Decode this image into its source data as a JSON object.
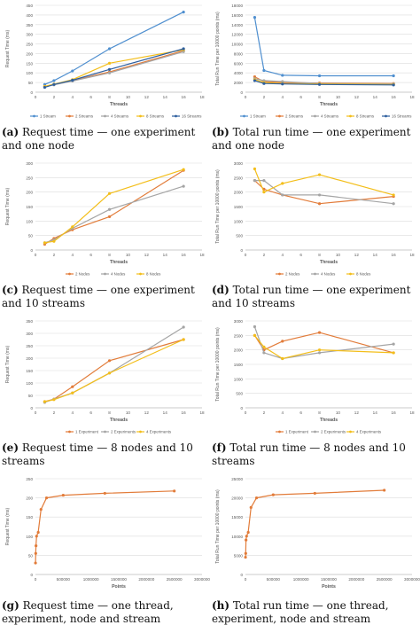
{
  "colors": {
    "blue": "#4f8fcf",
    "orange": "#e27c3a",
    "gray": "#a5a5a5",
    "yellow": "#f3be1a",
    "navy": "#2e5f9e",
    "grid": "#dcdcdc",
    "axis": "#bfbfbf",
    "text": "#595959"
  },
  "captions": [
    {
      "label": "(a)",
      "text": "Request time — one experiment and one node"
    },
    {
      "label": "(b)",
      "text": "Total run time — one experiment and one node"
    },
    {
      "label": "(c)",
      "text": "Request time — one experiment and 10 streams"
    },
    {
      "label": "(d)",
      "text": "Total run time — one experiment and 10 streams"
    },
    {
      "label": "(e)",
      "text": "Request time — 8 nodes and 10 streams"
    },
    {
      "label": "(f)",
      "text": "Total run time — 8 nodes and 10 streams"
    },
    {
      "label": "(g)",
      "text": "Request time — one thread, experiment, node and stream"
    },
    {
      "label": "(h)",
      "text": "Total run time — one thread, experiment, node and stream"
    }
  ],
  "chart_data": [
    {
      "id": "a",
      "type": "line",
      "xlabel": "Threads",
      "ylabel": "Request Time (ms)",
      "xlim": [
        0,
        18
      ],
      "xticks": [
        0,
        2,
        4,
        6,
        8,
        10,
        12,
        14,
        16,
        18
      ],
      "ylim": [
        0,
        450
      ],
      "yticks": [
        0,
        50,
        100,
        150,
        200,
        250,
        300,
        350,
        400,
        450
      ],
      "legend": "bottom",
      "grid": true,
      "series": [
        {
          "name": "1 Stream",
          "color": "blue",
          "x": [
            1,
            2,
            4,
            8,
            16
          ],
          "y": [
            40,
            60,
            110,
            225,
            415
          ]
        },
        {
          "name": "2 Streams",
          "color": "orange",
          "x": [
            1,
            2,
            4,
            8,
            16
          ],
          "y": [
            30,
            40,
            60,
            105,
            215
          ]
        },
        {
          "name": "4 Streams",
          "color": "gray",
          "x": [
            1,
            2,
            4,
            8,
            16
          ],
          "y": [
            28,
            38,
            58,
            100,
            210
          ]
        },
        {
          "name": "8 Streams",
          "color": "yellow",
          "x": [
            1,
            2,
            4,
            8,
            16
          ],
          "y": [
            30,
            42,
            65,
            150,
            220
          ]
        },
        {
          "name": "16 Streams",
          "color": "navy",
          "x": [
            1,
            2,
            4,
            8,
            16
          ],
          "y": [
            25,
            40,
            62,
            118,
            225
          ]
        }
      ]
    },
    {
      "id": "b",
      "type": "line",
      "xlabel": "Threads",
      "ylabel": "Total Run Time per 10000 points (ms)",
      "xlim": [
        0,
        18
      ],
      "xticks": [
        0,
        2,
        4,
        6,
        8,
        10,
        12,
        14,
        16,
        18
      ],
      "ylim": [
        0,
        18000
      ],
      "yticks": [
        0,
        2000,
        4000,
        6000,
        8000,
        10000,
        12000,
        14000,
        16000,
        18000
      ],
      "legend": "bottom",
      "grid": true,
      "series": [
        {
          "name": "1 Stream",
          "color": "blue",
          "x": [
            1,
            2,
            4,
            8,
            16
          ],
          "y": [
            15500,
            4500,
            3500,
            3400,
            3400
          ]
        },
        {
          "name": "2 Streams",
          "color": "orange",
          "x": [
            1,
            2,
            4,
            8,
            16
          ],
          "y": [
            3200,
            2200,
            2000,
            1900,
            1800
          ]
        },
        {
          "name": "4 Streams",
          "color": "gray",
          "x": [
            1,
            2,
            4,
            8,
            16
          ],
          "y": [
            2800,
            2400,
            2200,
            1800,
            1700
          ]
        },
        {
          "name": "8 Streams",
          "color": "yellow",
          "x": [
            1,
            2,
            4,
            8,
            16
          ],
          "y": [
            2600,
            2000,
            1800,
            1700,
            1600
          ]
        },
        {
          "name": "16 Streams",
          "color": "navy",
          "x": [
            1,
            2,
            4,
            8,
            16
          ],
          "y": [
            2400,
            1800,
            1700,
            1600,
            1500
          ]
        }
      ]
    },
    {
      "id": "c",
      "type": "line",
      "xlabel": "Threads",
      "ylabel": "Request Time (ms)",
      "xlim": [
        0,
        18
      ],
      "xticks": [
        0,
        2,
        4,
        6,
        8,
        10,
        12,
        14,
        16,
        18
      ],
      "ylim": [
        0,
        300
      ],
      "yticks": [
        0,
        50,
        100,
        150,
        200,
        250,
        300
      ],
      "legend": "bottom",
      "grid": true,
      "series": [
        {
          "name": "2 Nodes",
          "color": "orange",
          "x": [
            1,
            2,
            4,
            8,
            16
          ],
          "y": [
            20,
            40,
            70,
            115,
            275
          ]
        },
        {
          "name": "4 Nodes",
          "color": "gray",
          "x": [
            1,
            2,
            4,
            8,
            16
          ],
          "y": [
            25,
            35,
            75,
            140,
            220
          ]
        },
        {
          "name": "8 Nodes",
          "color": "yellow",
          "x": [
            1,
            2,
            4,
            8,
            16
          ],
          "y": [
            25,
            30,
            80,
            195,
            278
          ]
        }
      ]
    },
    {
      "id": "d",
      "type": "line",
      "xlabel": "Threads",
      "ylabel": "Total Run Time per 10000 points (ms)",
      "xlim": [
        0,
        18
      ],
      "xticks": [
        0,
        2,
        4,
        6,
        8,
        10,
        12,
        14,
        16,
        18
      ],
      "ylim": [
        0,
        3000
      ],
      "yticks": [
        0,
        500,
        1000,
        1500,
        2000,
        2500,
        3000
      ],
      "legend": "bottom",
      "grid": true,
      "series": [
        {
          "name": "2 Nodes",
          "color": "orange",
          "x": [
            1,
            2,
            4,
            8,
            16
          ],
          "y": [
            2400,
            2100,
            1900,
            1600,
            1850
          ]
        },
        {
          "name": "4 Nodes",
          "color": "gray",
          "x": [
            1,
            2,
            4,
            8,
            16
          ],
          "y": [
            2400,
            2400,
            1900,
            1900,
            1600
          ]
        },
        {
          "name": "8 Nodes",
          "color": "yellow",
          "x": [
            1,
            2,
            4,
            8,
            16
          ],
          "y": [
            2800,
            2000,
            2300,
            2600,
            1900
          ]
        }
      ]
    },
    {
      "id": "e",
      "type": "line",
      "xlabel": "Threads",
      "ylabel": "Request Time (ms)",
      "xlim": [
        0,
        18
      ],
      "xticks": [
        0,
        2,
        4,
        6,
        8,
        10,
        12,
        14,
        16,
        18
      ],
      "ylim": [
        0,
        350
      ],
      "yticks": [
        0,
        50,
        100,
        150,
        200,
        250,
        300,
        350
      ],
      "legend": "bottom",
      "grid": true,
      "series": [
        {
          "name": "1 Experiment",
          "color": "orange",
          "x": [
            1,
            2,
            4,
            8,
            16
          ],
          "y": [
            25,
            35,
            85,
            190,
            275
          ]
        },
        {
          "name": "2 Experiments",
          "color": "gray",
          "x": [
            1,
            2,
            4,
            8,
            16
          ],
          "y": [
            22,
            35,
            60,
            140,
            325
          ]
        },
        {
          "name": "4 Experiments",
          "color": "yellow",
          "x": [
            1,
            2,
            4,
            8,
            16
          ],
          "y": [
            25,
            33,
            60,
            140,
            275
          ]
        }
      ]
    },
    {
      "id": "f",
      "type": "line",
      "xlabel": "Threads",
      "ylabel": "Total Run Time per 10000 points (ms)",
      "xlim": [
        0,
        18
      ],
      "xticks": [
        0,
        2,
        4,
        6,
        8,
        10,
        12,
        14,
        16,
        18
      ],
      "ylim": [
        0,
        3000
      ],
      "yticks": [
        0,
        500,
        1000,
        1500,
        2000,
        2500,
        3000
      ],
      "legend": "bottom",
      "grid": true,
      "series": [
        {
          "name": "1 Experiment",
          "color": "orange",
          "x": [
            1,
            2,
            4,
            8,
            16
          ],
          "y": [
            2500,
            2000,
            2300,
            2600,
            1900
          ]
        },
        {
          "name": "2 Experiments",
          "color": "gray",
          "x": [
            1,
            2,
            4,
            8,
            16
          ],
          "y": [
            2800,
            1900,
            1700,
            1900,
            2200
          ]
        },
        {
          "name": "4 Experiments",
          "color": "yellow",
          "x": [
            1,
            2,
            4,
            8,
            16
          ],
          "y": [
            2500,
            2100,
            1700,
            2000,
            1900
          ]
        }
      ]
    },
    {
      "id": "g",
      "type": "line",
      "xlabel": "Points",
      "ylabel": "Request Time (ms)",
      "xlim": [
        0,
        3000000
      ],
      "xticks": [
        0,
        500000,
        1000000,
        1500000,
        2000000,
        2500000,
        3000000
      ],
      "ylim": [
        0,
        250
      ],
      "yticks": [
        0,
        50,
        100,
        150,
        200,
        250
      ],
      "legend": "none",
      "grid": true,
      "series": [
        {
          "color": "orange",
          "x": [
            1000,
            5000,
            10000,
            20000,
            50000,
            100000,
            200000,
            500000,
            1250000,
            2500000
          ],
          "y": [
            30,
            55,
            75,
            100,
            110,
            170,
            200,
            207,
            212,
            218
          ]
        }
      ]
    },
    {
      "id": "h",
      "type": "line",
      "xlabel": "Points",
      "ylabel": "Total Run Time per 10000 points (ms)",
      "xlim": [
        0,
        3000000
      ],
      "xticks": [
        0,
        500000,
        1000000,
        1500000,
        2000000,
        2500000,
        3000000
      ],
      "ylim": [
        0,
        25000
      ],
      "yticks": [
        0,
        5000,
        10000,
        15000,
        20000,
        25000
      ],
      "legend": "none",
      "grid": true,
      "series": [
        {
          "color": "orange",
          "x": [
            1000,
            5000,
            10000,
            20000,
            50000,
            100000,
            200000,
            500000,
            1250000,
            2500000
          ],
          "y": [
            4500,
            5500,
            9000,
            10000,
            11000,
            17500,
            20000,
            20800,
            21200,
            22000
          ]
        }
      ]
    }
  ]
}
